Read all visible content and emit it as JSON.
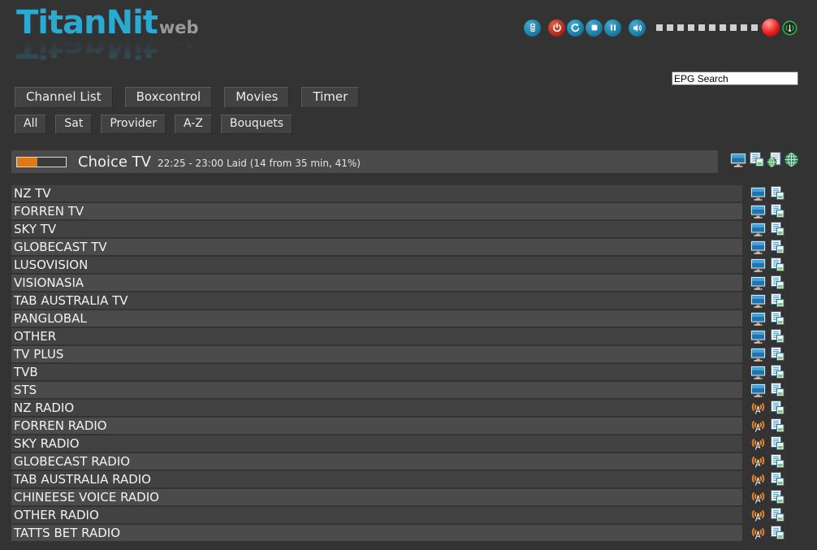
{
  "logo": {
    "title": "TitanNit",
    "suffix": "web"
  },
  "controls": {
    "icons": [
      "remote-icon",
      "power-icon",
      "refresh-icon",
      "stop-icon",
      "pause-icon",
      "volume-icon",
      "record-icon",
      "signal-icon"
    ],
    "volume_segments": 10,
    "colors": {
      "button_blue": "#1b7ea4",
      "button_red": "#b5291a",
      "record_red": "#ee1c1c",
      "signal_green": "#35a14b"
    }
  },
  "search": {
    "value": "EPG Search"
  },
  "nav": {
    "items": [
      "Channel List",
      "Boxcontrol",
      "Movies",
      "Timer"
    ]
  },
  "filters": {
    "items": [
      "All",
      "Sat",
      "Provider",
      "A-Z",
      "Bouquets"
    ]
  },
  "now_playing": {
    "channel": "Choice TV",
    "epg_info": "22:25 - 23:00 Laid (14 from 35 min, 41%)",
    "progress_percent": 41,
    "progress_color": "#e07818",
    "icons": [
      "tv-icon",
      "epg-icon",
      "stream-file-icon",
      "web-icon"
    ]
  },
  "channels": [
    {
      "name": "NZ TV",
      "type": "tv"
    },
    {
      "name": "FORREN TV",
      "type": "tv"
    },
    {
      "name": "SKY TV",
      "type": "tv"
    },
    {
      "name": "GLOBECAST TV",
      "type": "tv"
    },
    {
      "name": "LUSOVISION",
      "type": "tv"
    },
    {
      "name": "VISIONASIA",
      "type": "tv"
    },
    {
      "name": "TAB AUSTRALIA TV",
      "type": "tv"
    },
    {
      "name": "PANGLOBAL",
      "type": "tv"
    },
    {
      "name": "OTHER",
      "type": "tv"
    },
    {
      "name": "TV PLUS",
      "type": "tv"
    },
    {
      "name": "TVB",
      "type": "tv"
    },
    {
      "name": "STS",
      "type": "tv"
    },
    {
      "name": "NZ RADIO",
      "type": "radio"
    },
    {
      "name": "FORREN RADIO",
      "type": "radio"
    },
    {
      "name": "SKY RADIO",
      "type": "radio"
    },
    {
      "name": "GLOBECAST RADIO",
      "type": "radio"
    },
    {
      "name": "TAB AUSTRALIA RADIO",
      "type": "radio"
    },
    {
      "name": "CHINEESE VOICE RADIO",
      "type": "radio"
    },
    {
      "name": "OTHER RADIO",
      "type": "radio"
    },
    {
      "name": "TATTS BET RADIO",
      "type": "radio"
    }
  ]
}
